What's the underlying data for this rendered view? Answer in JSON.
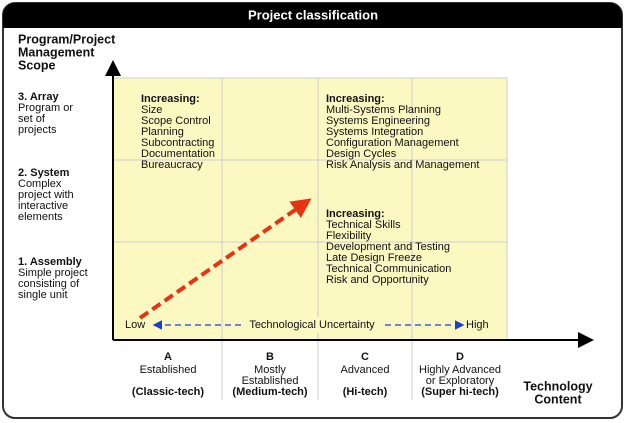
{
  "header": {
    "title": "Project classification"
  },
  "y_axis": {
    "title_lines": [
      "Program/Project",
      "Management",
      "Scope"
    ],
    "levels": [
      {
        "name": "3. Array",
        "desc_lines": [
          "Program or",
          "set of",
          "projects"
        ]
      },
      {
        "name": "2. System",
        "desc_lines": [
          "Complex",
          "project with",
          "interactive",
          "elements"
        ]
      },
      {
        "name": "1. Assembly",
        "desc_lines": [
          "Simple project",
          "consisting of",
          "single unit"
        ]
      }
    ]
  },
  "x_axis": {
    "title_lines": [
      "Technology",
      "Content"
    ],
    "columns": [
      {
        "letter": "A",
        "name_lines": [
          "Established"
        ],
        "tech": "(Classic-tech)"
      },
      {
        "letter": "B",
        "name_lines": [
          "Mostly",
          "Established"
        ],
        "tech": "(Medium-tech)"
      },
      {
        "letter": "C",
        "name_lines": [
          "Advanced"
        ],
        "tech": "(Hi-tech)"
      },
      {
        "letter": "D",
        "name_lines": [
          "Highly Advanced",
          "or Exploratory"
        ],
        "tech": "(Super hi-tech)"
      }
    ]
  },
  "uncertainty": {
    "low": "Low",
    "label": "Technological Uncertainty",
    "high": "High"
  },
  "blocks": [
    {
      "heading": "Increasing:",
      "items": [
        "Size",
        "Scope Control",
        "Planning",
        "Subcontracting",
        "Documentation",
        "Bureaucracy"
      ]
    },
    {
      "heading": "Increasing:",
      "items": [
        "Multi-Systems Planning",
        "Systems Engineering",
        "Systems Integration",
        "Configuration Management",
        "Design Cycles",
        "Risk Analysis and Management"
      ]
    },
    {
      "heading": "Increasing:",
      "items": [
        "Technical Skills",
        "Flexibility",
        "Development and Testing",
        "Late Design Freeze",
        "Technical Communication",
        "Risk and Opportunity"
      ]
    }
  ]
}
